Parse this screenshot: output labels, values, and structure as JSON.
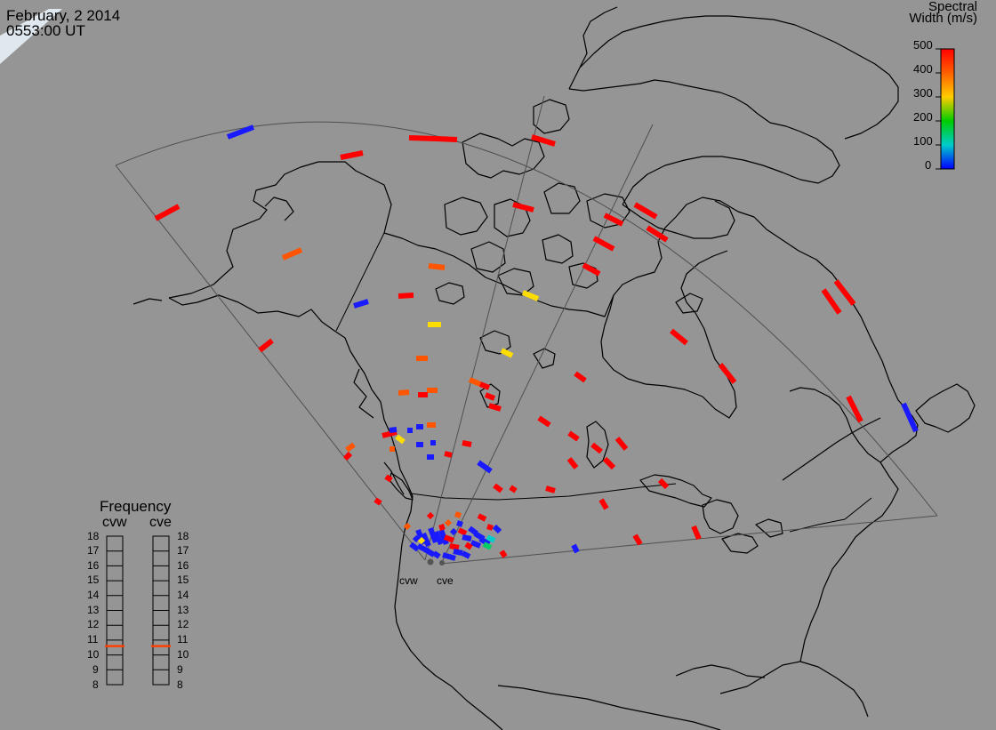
{
  "header": {
    "date": "February, 2 2014",
    "time": "0553:00 UT"
  },
  "legend": {
    "title_line1": "Spectral",
    "title_line2": "Width (m/s)",
    "ticks": [
      "500",
      "400",
      "300",
      "200",
      "100",
      "0"
    ],
    "colors": [
      "#ff0000",
      "#ff8000",
      "#ffff00",
      "#00dd00",
      "#00dddd",
      "#0000ff"
    ]
  },
  "frequency": {
    "title": "Frequency",
    "radars": [
      "cvw",
      "cve"
    ],
    "levels": [
      "18",
      "17",
      "16",
      "15",
      "14",
      "13",
      "12",
      "11",
      "10",
      "9",
      "8"
    ],
    "current": {
      "cvw": 10.6,
      "cve": 10.6
    },
    "marker_color": "#ff4000"
  },
  "radar_sites": [
    "cvw",
    "cve"
  ],
  "colors": {
    "background": "#959595",
    "coast": "#000000",
    "fov": "#505050"
  }
}
